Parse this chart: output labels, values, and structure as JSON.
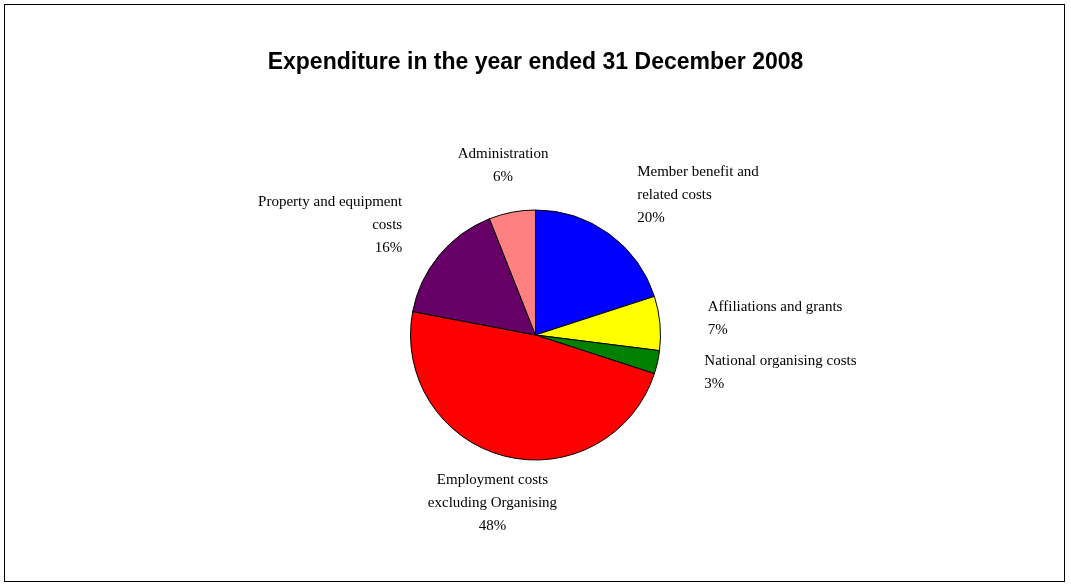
{
  "chart_data": {
    "type": "pie",
    "title": "Expenditure in the year ended 31 December 2008",
    "categories": [
      "Member benefit and related costs",
      "Affiliations and grants",
      "National organising costs",
      "Employment costs excluding Organising",
      "Property and equipment costs",
      "Administration"
    ],
    "values": [
      20,
      7,
      3,
      48,
      16,
      6
    ],
    "value_labels": [
      "20%",
      "7%",
      "3%",
      "48%",
      "16%",
      "6%"
    ],
    "colors": [
      "#0000ff",
      "#ffff00",
      "#008000",
      "#ff0000",
      "#660066",
      "#ff8080"
    ]
  }
}
